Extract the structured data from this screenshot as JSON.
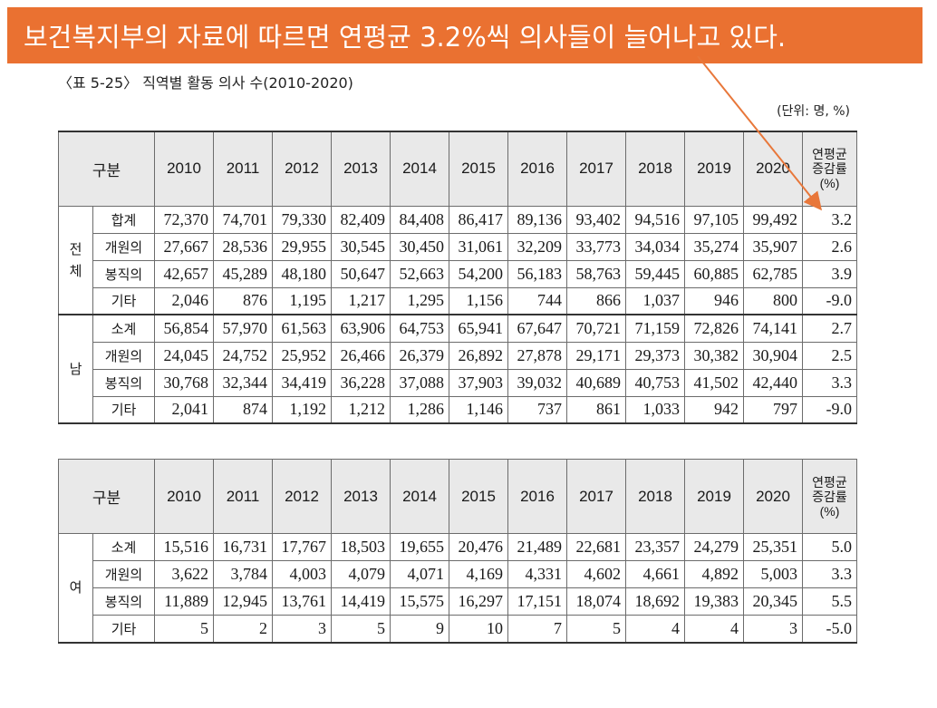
{
  "banner": {
    "text": "보건복지부의 자료에 따르면 연평균 3.2%씩 의사들이 늘어나고 있다."
  },
  "caption": "〈표 5-25〉 직역별 활동 의사 수(2010-2020)",
  "unit": "(단위: 명, %)",
  "header": {
    "group_label": "구분",
    "years": [
      "2010",
      "2011",
      "2012",
      "2013",
      "2014",
      "2015",
      "2016",
      "2017",
      "2018",
      "2019",
      "2020"
    ],
    "avg_label_1": "연평균",
    "avg_label_2": "증감률",
    "avg_label_3": "(%)"
  },
  "table1": {
    "groups": [
      {
        "label_1": "전",
        "label_2": "체",
        "rows": [
          {
            "cat": "합계",
            "values": [
              "72,370",
              "74,701",
              "79,330",
              "82,409",
              "84,408",
              "86,417",
              "89,136",
              "93,402",
              "94,516",
              "97,105",
              "99,492"
            ],
            "avg": "3.2"
          },
          {
            "cat": "개원의",
            "values": [
              "27,667",
              "28,536",
              "29,955",
              "30,545",
              "30,450",
              "31,061",
              "32,209",
              "33,773",
              "34,034",
              "35,274",
              "35,907"
            ],
            "avg": "2.6"
          },
          {
            "cat": "봉직의",
            "values": [
              "42,657",
              "45,289",
              "48,180",
              "50,647",
              "52,663",
              "54,200",
              "56,183",
              "58,763",
              "59,445",
              "60,885",
              "62,785"
            ],
            "avg": "3.9"
          },
          {
            "cat": "기타",
            "values": [
              "2,046",
              "876",
              "1,195",
              "1,217",
              "1,295",
              "1,156",
              "744",
              "866",
              "1,037",
              "946",
              "800"
            ],
            "avg": "-9.0"
          }
        ]
      },
      {
        "label_1": "남",
        "label_2": "",
        "rows": [
          {
            "cat": "소계",
            "values": [
              "56,854",
              "57,970",
              "61,563",
              "63,906",
              "64,753",
              "65,941",
              "67,647",
              "70,721",
              "71,159",
              "72,826",
              "74,141"
            ],
            "avg": "2.7"
          },
          {
            "cat": "개원의",
            "values": [
              "24,045",
              "24,752",
              "25,952",
              "26,466",
              "26,379",
              "26,892",
              "27,878",
              "29,171",
              "29,373",
              "30,382",
              "30,904"
            ],
            "avg": "2.5"
          },
          {
            "cat": "봉직의",
            "values": [
              "30,768",
              "32,344",
              "34,419",
              "36,228",
              "37,088",
              "37,903",
              "39,032",
              "40,689",
              "40,753",
              "41,502",
              "42,440"
            ],
            "avg": "3.3"
          },
          {
            "cat": "기타",
            "values": [
              "2,041",
              "874",
              "1,192",
              "1,212",
              "1,286",
              "1,146",
              "737",
              "861",
              "1,033",
              "942",
              "797"
            ],
            "avg": "-9.0"
          }
        ]
      }
    ]
  },
  "table2": {
    "groups": [
      {
        "label_1": "여",
        "label_2": "",
        "rows": [
          {
            "cat": "소계",
            "values": [
              "15,516",
              "16,731",
              "17,767",
              "18,503",
              "19,655",
              "20,476",
              "21,489",
              "22,681",
              "23,357",
              "24,279",
              "25,351"
            ],
            "avg": "5.0"
          },
          {
            "cat": "개원의",
            "values": [
              "3,622",
              "3,784",
              "4,003",
              "4,079",
              "4,071",
              "4,169",
              "4,331",
              "4,602",
              "4,661",
              "4,892",
              "5,003"
            ],
            "avg": "3.3"
          },
          {
            "cat": "봉직의",
            "values": [
              "11,889",
              "12,945",
              "13,761",
              "14,419",
              "15,575",
              "16,297",
              "17,151",
              "18,074",
              "18,692",
              "19,383",
              "20,345"
            ],
            "avg": "5.5"
          },
          {
            "cat": "기타",
            "values": [
              "5",
              "2",
              "3",
              "5",
              "9",
              "10",
              "7",
              "5",
              "4",
              "4",
              "3"
            ],
            "avg": "-5.0"
          }
        ]
      }
    ]
  },
  "colors": {
    "banner_bg": "#ea7131",
    "arrow": "#e8773a",
    "header_bg": "#e9e9e9"
  }
}
